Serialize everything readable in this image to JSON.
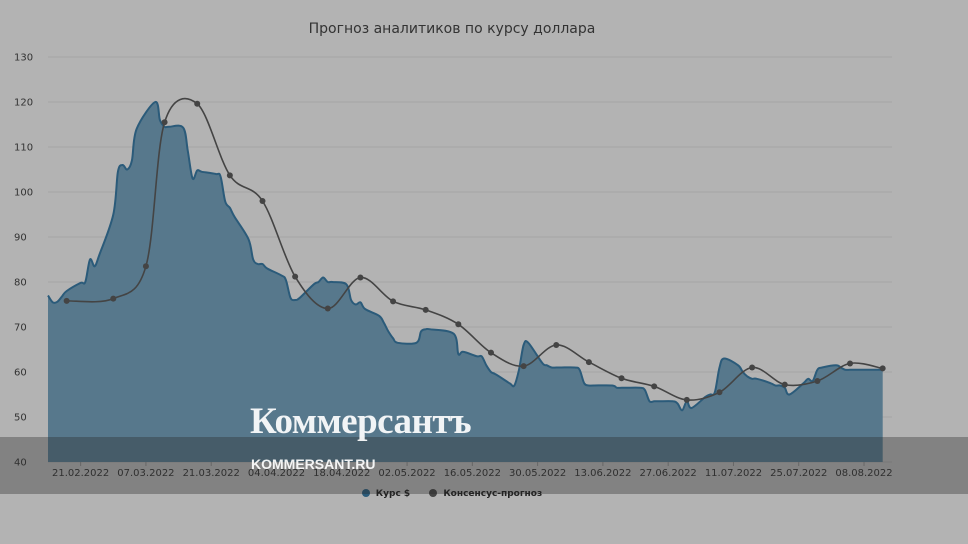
{
  "chart_data": {
    "type": "area",
    "title": "Прогноз аналитиков по курсу доллара",
    "ylim": [
      40,
      130
    ],
    "yticks": [
      40,
      50,
      60,
      70,
      80,
      90,
      100,
      110,
      120,
      130
    ],
    "xticks": [
      "21.02.2022",
      "07.03.2022",
      "21.03.2022",
      "04.04.2022",
      "18.04.2022",
      "02.05.2022",
      "16.05.2022",
      "30.05.2022",
      "13.06.2022",
      "27.06.2022",
      "11.07.2022",
      "25.07.2022",
      "08.08.2022"
    ],
    "xlim": [
      "2022-02-14",
      "2022-08-14"
    ],
    "grid": true,
    "legend_position": "bottom",
    "series": [
      {
        "name": "Курс $",
        "type": "area",
        "color": "#2b5b7a",
        "x": [
          "2022-02-14",
          "2022-02-15",
          "2022-02-16",
          "2022-02-17",
          "2022-02-18",
          "2022-02-21",
          "2022-02-22",
          "2022-02-23",
          "2022-02-24",
          "2022-02-25",
          "2022-02-28",
          "2022-03-01",
          "2022-03-02",
          "2022-03-03",
          "2022-03-04",
          "2022-03-05",
          "2022-03-09",
          "2022-03-10",
          "2022-03-11",
          "2022-03-12",
          "2022-03-15",
          "2022-03-16",
          "2022-03-17",
          "2022-03-18",
          "2022-03-19",
          "2022-03-22",
          "2022-03-23",
          "2022-03-24",
          "2022-03-25",
          "2022-03-26",
          "2022-03-29",
          "2022-03-30",
          "2022-03-31",
          "2022-04-01",
          "2022-04-02",
          "2022-04-05",
          "2022-04-06",
          "2022-04-07",
          "2022-04-08",
          "2022-04-09",
          "2022-04-12",
          "2022-04-13",
          "2022-04-14",
          "2022-04-15",
          "2022-04-16",
          "2022-04-19",
          "2022-04-20",
          "2022-04-21",
          "2022-04-22",
          "2022-04-23",
          "2022-04-26",
          "2022-04-27",
          "2022-04-28",
          "2022-04-29",
          "2022-04-30",
          "2022-05-04",
          "2022-05-05",
          "2022-05-06",
          "2022-05-07",
          "2022-05-12",
          "2022-05-13",
          "2022-05-14",
          "2022-05-17",
          "2022-05-18",
          "2022-05-19",
          "2022-05-20",
          "2022-05-21",
          "2022-05-24",
          "2022-05-25",
          "2022-05-26",
          "2022-05-27",
          "2022-05-28",
          "2022-05-31",
          "2022-06-01",
          "2022-06-02",
          "2022-06-03",
          "2022-06-04",
          "2022-06-07",
          "2022-06-08",
          "2022-06-09",
          "2022-06-10",
          "2022-06-11",
          "2022-06-15",
          "2022-06-16",
          "2022-06-17",
          "2022-06-18",
          "2022-06-21",
          "2022-06-22",
          "2022-06-23",
          "2022-06-24",
          "2022-06-25",
          "2022-06-28",
          "2022-06-29",
          "2022-06-30",
          "2022-07-01",
          "2022-07-02",
          "2022-07-05",
          "2022-07-06",
          "2022-07-07",
          "2022-07-08",
          "2022-07-09",
          "2022-07-12",
          "2022-07-13",
          "2022-07-14",
          "2022-07-15",
          "2022-07-16",
          "2022-07-19",
          "2022-07-20",
          "2022-07-21",
          "2022-07-22",
          "2022-07-23",
          "2022-07-26",
          "2022-07-27",
          "2022-07-28",
          "2022-07-29",
          "2022-07-30",
          "2022-08-02",
          "2022-08-03",
          "2022-08-04",
          "2022-08-05",
          "2022-08-06",
          "2022-08-09",
          "2022-08-10",
          "2022-08-11",
          "2022-08-12"
        ],
        "values": [
          77.0,
          75.5,
          75.6,
          76.8,
          78.0,
          79.8,
          80.0,
          85.0,
          83.5,
          86.0,
          95.0,
          104.5,
          106.0,
          105.0,
          107.0,
          114.0,
          120.0,
          116.0,
          114.5,
          114.5,
          114.3,
          109.0,
          103.0,
          104.8,
          104.5,
          104.0,
          103.5,
          97.9,
          96.5,
          94.5,
          89.5,
          85.0,
          84.0,
          84.0,
          83.0,
          81.5,
          80.5,
          76.5,
          76.0,
          76.5,
          79.5,
          80.0,
          81.0,
          80.0,
          80.0,
          79.5,
          76.0,
          75.0,
          75.5,
          74.0,
          72.5,
          71.0,
          69.0,
          67.5,
          66.5,
          66.5,
          69.0,
          69.5,
          69.5,
          68.5,
          64.0,
          64.5,
          63.5,
          63.5,
          61.5,
          60.0,
          59.5,
          57.5,
          57.0,
          60.5,
          66.0,
          66.5,
          62.0,
          61.5,
          61.0,
          61.0,
          61.0,
          61.0,
          60.5,
          57.5,
          57.0,
          57.0,
          57.0,
          56.5,
          56.5,
          56.5,
          56.5,
          56.0,
          53.5,
          53.5,
          53.5,
          53.5,
          53.0,
          51.5,
          53.5,
          52.0,
          54.5,
          55.0,
          55.5,
          61.0,
          63.0,
          61.5,
          60.0,
          59.0,
          58.5,
          58.5,
          57.5,
          57.0,
          57.0,
          56.5,
          55.0,
          57.5,
          58.5,
          58.0,
          60.5,
          61.0,
          61.5,
          61.0,
          60.5,
          60.5,
          60.5,
          60.5,
          60.5,
          60.5,
          60.5
        ]
      },
      {
        "name": "Консенсус-прогноз",
        "type": "line",
        "color": "#444444",
        "x": [
          "2022-02-18",
          "2022-02-28",
          "2022-03-07",
          "2022-03-11",
          "2022-03-18",
          "2022-03-25",
          "2022-04-01",
          "2022-04-08",
          "2022-04-15",
          "2022-04-22",
          "2022-04-29",
          "2022-05-06",
          "2022-05-13",
          "2022-05-20",
          "2022-05-27",
          "2022-06-03",
          "2022-06-10",
          "2022-06-17",
          "2022-06-24",
          "2022-07-01",
          "2022-07-08",
          "2022-07-15",
          "2022-07-22",
          "2022-07-29",
          "2022-08-05",
          "2022-08-12"
        ],
        "values": [
          75.8,
          76.3,
          83.5,
          115.5,
          119.6,
          103.7,
          98.0,
          81.2,
          74.1,
          81.0,
          75.7,
          73.8,
          70.6,
          64.3,
          61.3,
          66.0,
          62.2,
          58.6,
          56.8,
          53.8,
          55.5,
          61.0,
          57.2,
          58.0,
          61.9,
          60.8
        ]
      }
    ]
  },
  "watermark": {
    "logo": "Коммерсантъ",
    "site": "KOMMERSANT.RU"
  }
}
